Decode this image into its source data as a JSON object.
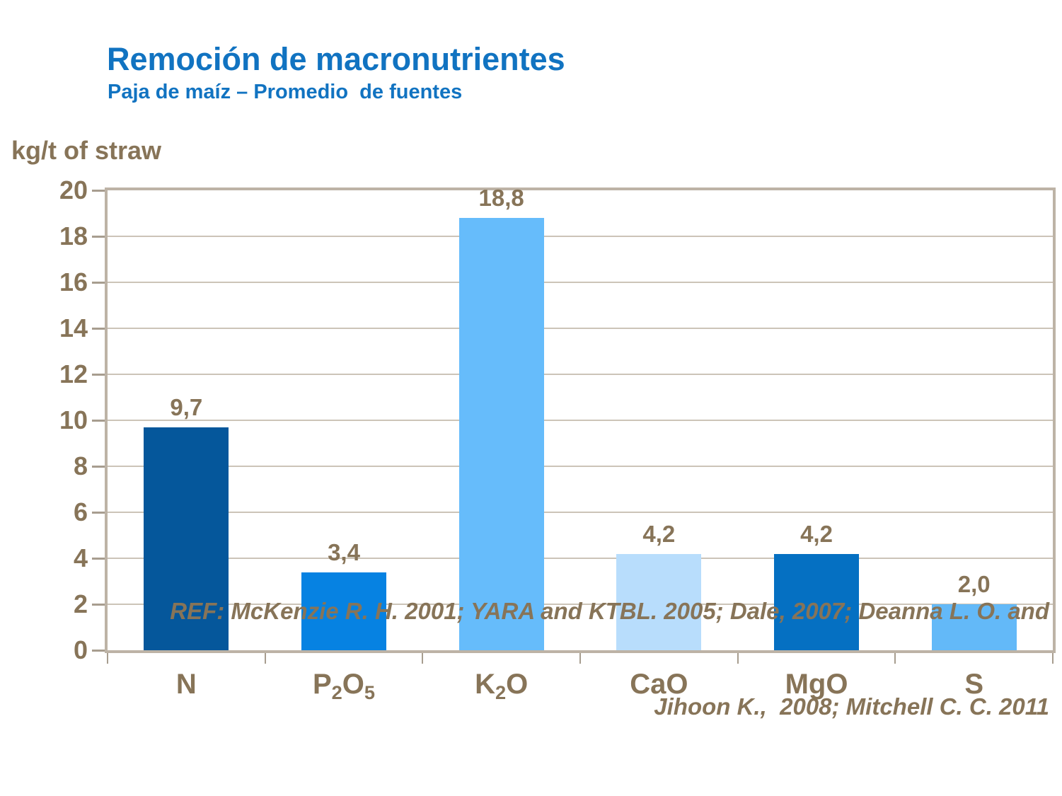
{
  "header": {
    "title": "Remoción de macronutrientes",
    "subtitle": "Paja de maíz – Promedio  de fuentes"
  },
  "chart_data": {
    "type": "bar",
    "title": "Remoción de macronutrientes",
    "subtitle": "Paja de maíz – Promedio de fuentes",
    "ylabel": "kg/t of straw",
    "ylim": [
      0,
      20
    ],
    "yticks": [
      0,
      2,
      4,
      6,
      8,
      10,
      12,
      14,
      16,
      18,
      20
    ],
    "grid": true,
    "legend": "none",
    "categories": [
      "N",
      "P2O5",
      "K2O",
      "CaO",
      "MgO",
      "S"
    ],
    "category_display": [
      [
        {
          "text": "N"
        }
      ],
      [
        {
          "text": "P"
        },
        {
          "text": "2",
          "sub": true
        },
        {
          "text": "O"
        },
        {
          "text": "5",
          "sub": true
        }
      ],
      [
        {
          "text": "K"
        },
        {
          "text": "2",
          "sub": true
        },
        {
          "text": "O"
        }
      ],
      [
        {
          "text": "CaO"
        }
      ],
      [
        {
          "text": "MgO"
        }
      ],
      [
        {
          "text": "S"
        }
      ]
    ],
    "values": [
      9.7,
      3.4,
      18.8,
      4.2,
      4.2,
      2.0
    ],
    "value_labels": [
      "9,7",
      "3,4",
      "18,8",
      "4,2",
      "4,2",
      "2,0"
    ],
    "bar_colors": [
      "#05579B",
      "#0682E2",
      "#66BCFB",
      "#B8DDFC",
      "#0570C2",
      "#63B9F8"
    ]
  },
  "footer": {
    "line1": "REF: McKenzie R. H. 2001; YARA and KTBL. 2005; Dale, 2007; Deanna L. O. and",
    "line2": "Jihoon K.,  2008; Mitchell C. C. 2011"
  },
  "colors": {
    "title_blue": "#1173C1",
    "text_brown": "#877458",
    "gridline": "#CCC4B8",
    "plot_border": "#BDB3A6"
  }
}
